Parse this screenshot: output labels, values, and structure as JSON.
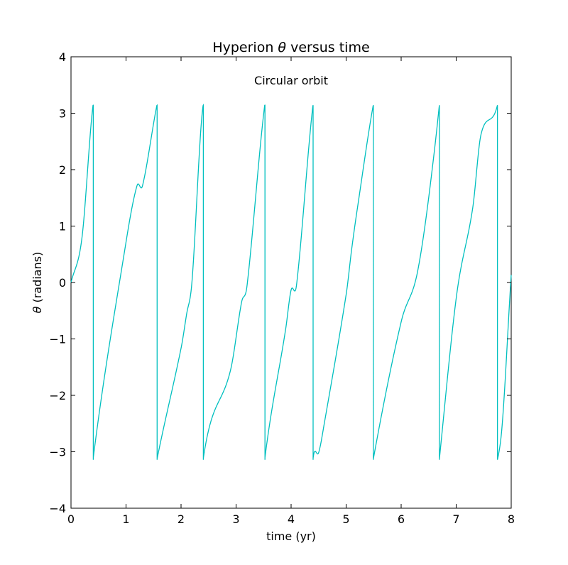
{
  "chart_data": {
    "type": "line",
    "title": "Hyperion θ versus time",
    "title_prefix": "Hyperion ",
    "title_symbol": "θ",
    "title_suffix": " versus time",
    "annotation": "Circular orbit",
    "xlabel": "time (yr)",
    "ylabel": "θ (radians)",
    "ylabel_symbol": "θ",
    "ylabel_suffix": " (radians)",
    "xlim": [
      0,
      8
    ],
    "ylim": [
      -4,
      4
    ],
    "xticks": [
      0,
      1,
      2,
      3,
      4,
      5,
      6,
      7,
      8
    ],
    "yticks": [
      -4,
      -3,
      -2,
      -1,
      0,
      1,
      2,
      3,
      4
    ],
    "xtick_labels": [
      "0",
      "1",
      "2",
      "3",
      "4",
      "5",
      "6",
      "7",
      "8"
    ],
    "ytick_labels": [
      "−4",
      "−3",
      "−2",
      "−1",
      "0",
      "1",
      "2",
      "3",
      "4"
    ],
    "grid": false,
    "series": [
      {
        "name": "theta",
        "color": "#00bfbf",
        "wrap": [
          -3.14159,
          3.14159
        ],
        "x": [
          0,
          0.2,
          0.4,
          1.0,
          1.2,
          1.3,
          1.56,
          2.0,
          2.1,
          2.2,
          2.4,
          2.9,
          3.1,
          3.2,
          3.52,
          3.9,
          4.0,
          4.1,
          4.4,
          4.5,
          4.6,
          5.0,
          5.1,
          5.2,
          5.5,
          6.0,
          6.3,
          6.6,
          7.0,
          7.3,
          7.45,
          7.8,
          8.0
        ],
        "unwrapped_theta": [
          0,
          0.8,
          3.14,
          7.0,
          8.0,
          8.0,
          9.42,
          11.4,
          12.0,
          12.6,
          15.7,
          17.3,
          18.5,
          18.8,
          21.99,
          24.3,
          25.0,
          25.1,
          28.3,
          28.4,
          28.9,
          31.2,
          32.0,
          32.7,
          34.6,
          37.0,
          37.9,
          40.0,
          43.7,
          45.3,
          46.6,
          47.4,
          50.4
        ]
      }
    ]
  }
}
